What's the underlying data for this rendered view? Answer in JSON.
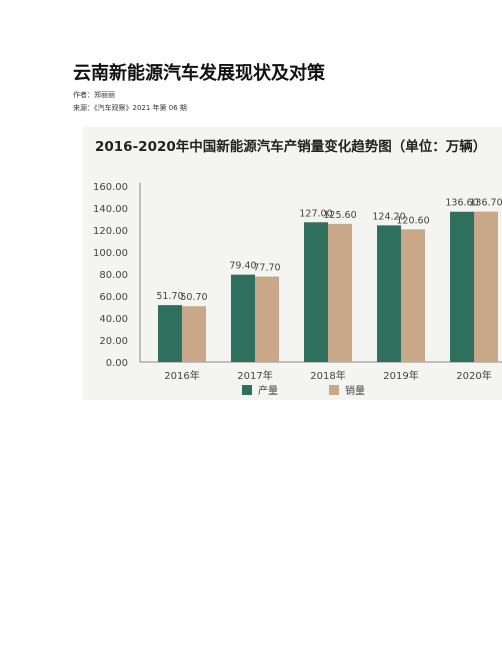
{
  "article": {
    "title": "云南新能源汽车发展现状及对策",
    "author_line": "作者：郑丽丽",
    "source_line": "来源：《汽车观察》2021 年第 06 期"
  },
  "chart_data": {
    "type": "bar",
    "title": "2016-2020年中国新能源汽车产销量变化趋势图（单位：万辆）",
    "categories": [
      "2016年",
      "2017年",
      "2018年",
      "2019年",
      "2020年"
    ],
    "series": [
      {
        "name": "产量",
        "values": [
          51.7,
          79.4,
          127.0,
          124.2,
          136.6
        ],
        "color": "#2f6f5e"
      },
      {
        "name": "销量",
        "values": [
          50.7,
          77.7,
          125.6,
          120.6,
          136.7
        ],
        "color": "#c9a88a"
      }
    ],
    "yticks": [
      "0.00",
      "20.00",
      "40.00",
      "60.00",
      "80.00",
      "100.00",
      "120.00",
      "140.00",
      "160.00"
    ],
    "ylim": [
      0,
      160
    ],
    "legend_position": "bottom",
    "grid": false
  }
}
